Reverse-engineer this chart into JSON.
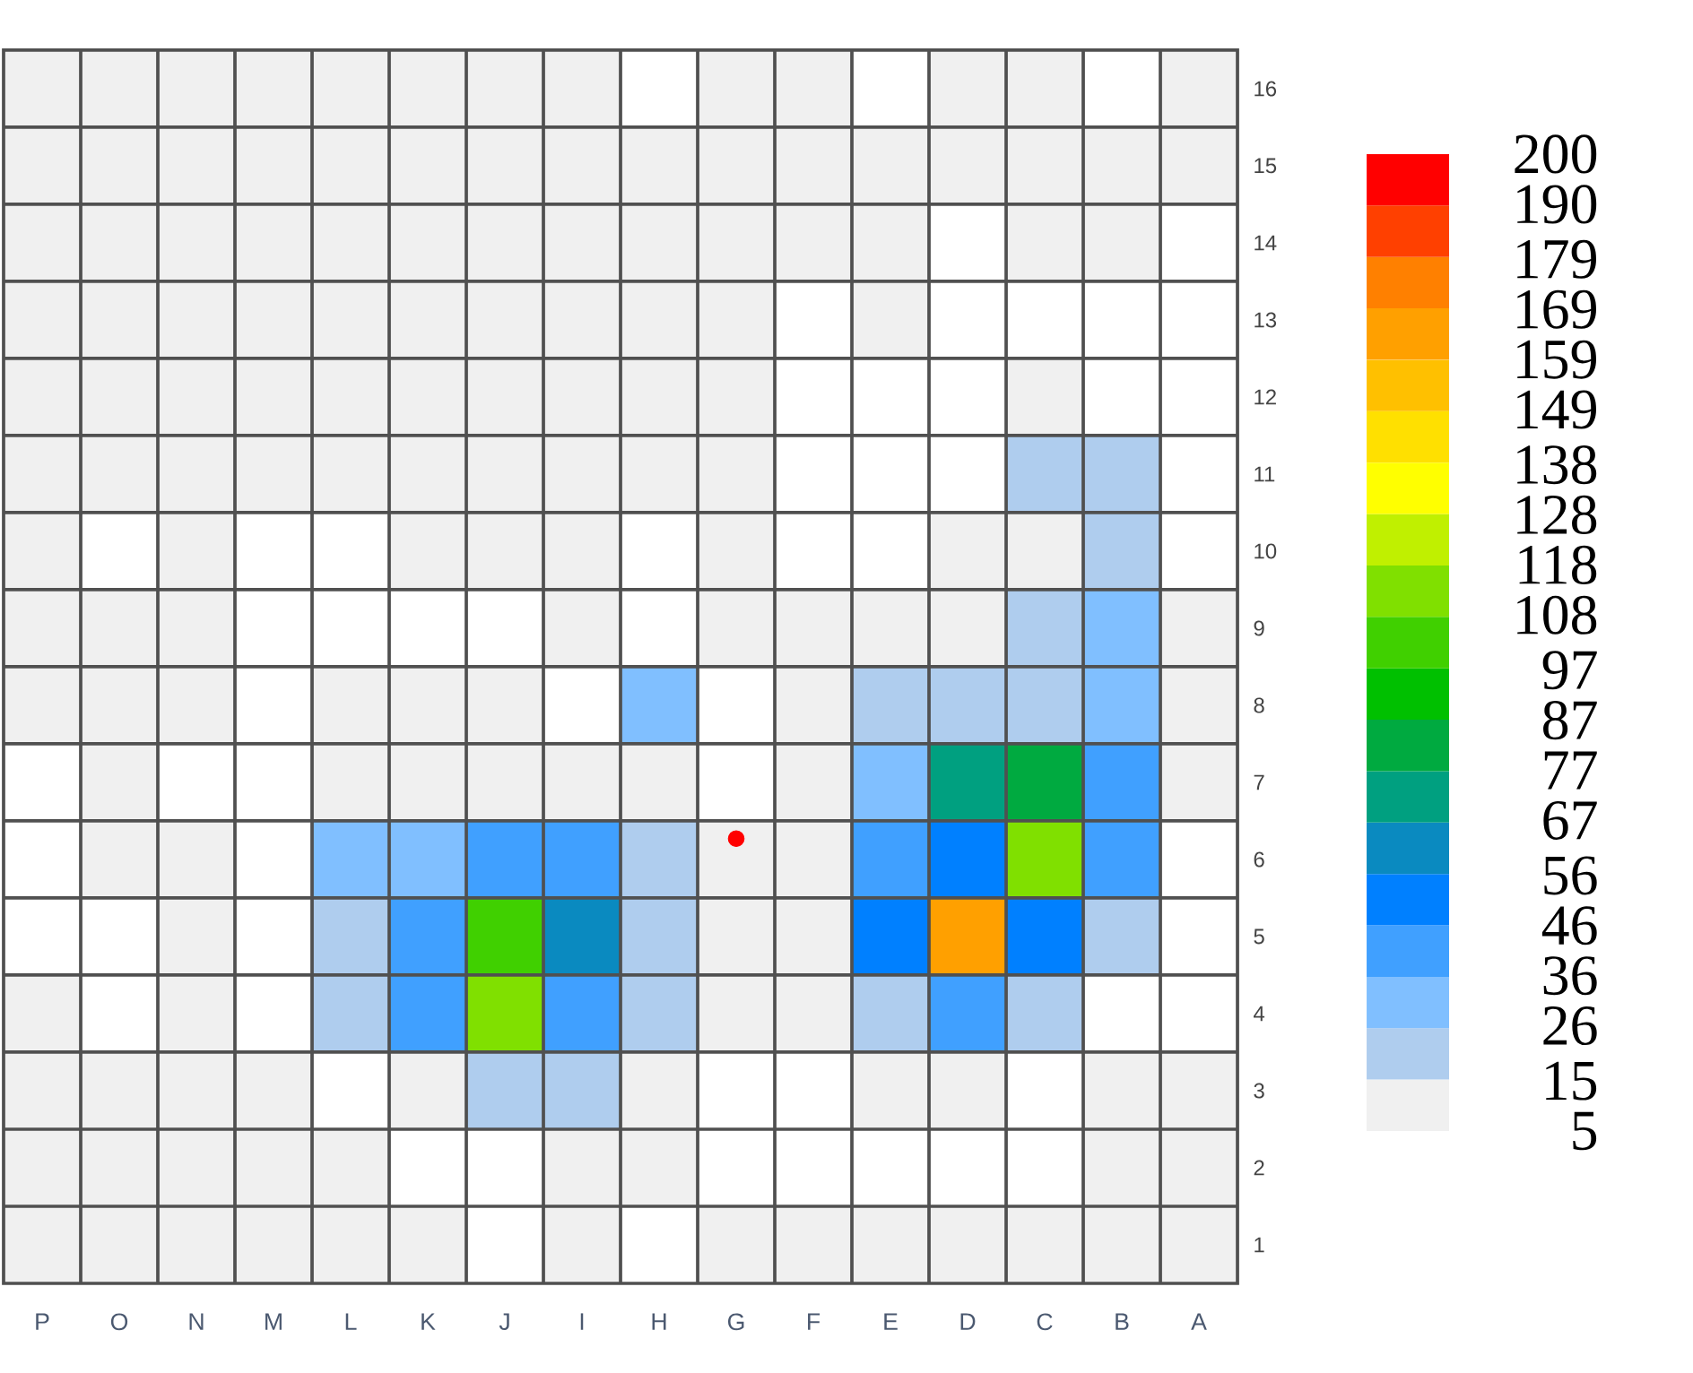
{
  "chart_data": {
    "type": "heatmap",
    "categories": [
      "P",
      "O",
      "N",
      "M",
      "L",
      "K",
      "J",
      "I",
      "H",
      "G",
      "F",
      "E",
      "D",
      "C",
      "B",
      "A"
    ],
    "ylim": [
      0.5,
      16.5
    ],
    "yticks": [
      1,
      2,
      3,
      4,
      5,
      6,
      7,
      8,
      9,
      10,
      11,
      12,
      13,
      14,
      15,
      16
    ],
    "cells": [
      [
        10,
        10,
        10,
        10,
        10,
        10,
        10,
        10,
        null,
        10,
        10,
        null,
        10,
        6,
        null,
        10
      ],
      [
        10,
        10,
        10,
        10,
        10,
        10,
        10,
        10,
        10,
        10,
        10,
        10,
        10,
        10,
        10,
        6
      ],
      [
        10,
        10,
        10,
        10,
        10,
        10,
        10,
        10,
        10,
        10,
        10,
        10,
        null,
        8,
        7,
        null
      ],
      [
        10,
        10,
        10,
        10,
        10,
        10,
        10,
        10,
        10,
        10,
        null,
        7,
        null,
        null,
        null,
        null
      ],
      [
        10,
        10,
        10,
        10,
        10,
        10,
        10,
        10,
        10,
        10,
        null,
        null,
        null,
        6,
        null,
        null
      ],
      [
        10,
        10,
        10,
        10,
        10,
        10,
        10,
        10,
        10,
        10,
        null,
        null,
        null,
        17,
        18,
        null
      ],
      [
        10,
        null,
        8,
        null,
        null,
        7,
        8,
        7,
        null,
        8,
        null,
        null,
        8,
        12,
        20,
        null
      ],
      [
        10,
        6,
        7,
        null,
        null,
        null,
        null,
        6,
        null,
        7,
        6,
        10,
        12,
        20,
        30,
        12
      ],
      [
        10,
        10,
        10,
        null,
        6,
        8,
        10,
        null,
        30,
        null,
        10,
        20,
        24,
        24,
        30,
        10
      ],
      [
        null,
        10,
        null,
        null,
        10,
        15,
        13,
        14,
        10,
        null,
        12,
        27,
        75,
        85,
        45,
        10
      ],
      [
        null,
        7,
        6,
        null,
        27,
        26,
        42,
        40,
        17,
        7,
        8,
        40,
        52,
        115,
        36,
        null
      ],
      [
        null,
        null,
        7,
        null,
        25,
        46,
        102,
        58,
        22,
        7,
        12,
        50,
        163,
        55,
        18,
        null
      ],
      [
        8,
        null,
        8,
        null,
        17,
        38,
        112,
        45,
        18,
        6,
        7,
        24,
        42,
        20,
        null,
        null
      ],
      [
        10,
        10,
        10,
        10,
        null,
        14,
        20,
        18,
        15,
        null,
        null,
        8,
        12,
        null,
        6,
        7
      ],
      [
        10,
        10,
        10,
        10,
        7,
        null,
        null,
        8,
        8,
        null,
        null,
        null,
        null,
        null,
        8,
        10
      ],
      [
        10,
        10,
        10,
        10,
        10,
        6,
        null,
        7,
        null,
        8,
        8,
        8,
        10,
        10,
        10,
        10
      ]
    ],
    "clim": [
      5,
      200
    ],
    "cticks": [
      5,
      15,
      26,
      36,
      46,
      56,
      67,
      77,
      87,
      97,
      108,
      118,
      128,
      138,
      149,
      159,
      169,
      179,
      190,
      200
    ],
    "colors": [
      "#f0f0f0",
      "#afcdee",
      "#80bfff",
      "#40a0ff",
      "#0080ff",
      "#0a8ac0",
      "#00a080",
      "#00aa40",
      "#00c000",
      "#40d000",
      "#80e000",
      "#c0f000",
      "#ffff00",
      "#ffe000",
      "#ffc000",
      "#ffa000",
      "#ff8000",
      "#ff4000",
      "#ff0000"
    ],
    "grid": true,
    "series": [
      {
        "type": "scatter",
        "values": [
          null,
          null,
          null,
          null,
          null,
          null,
          null,
          null,
          null,
          6.27,
          null,
          null,
          null,
          null,
          null,
          null
        ],
        "color": "#ff0000",
        "marker": "circle"
      }
    ]
  }
}
